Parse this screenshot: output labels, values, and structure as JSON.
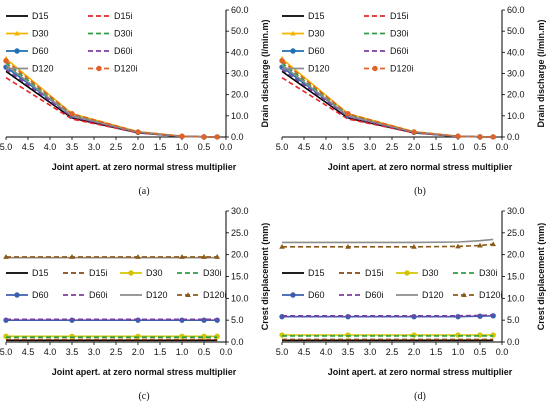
{
  "chart_data": [
    {
      "type": "line",
      "panel_label": "(a)",
      "xlabel": "Joint apert. at zero normal stress multiplier",
      "ylabel": "Drain discharge (l/min.m)",
      "x_reversed": true,
      "xlim": [
        5.0,
        0.0
      ],
      "ylim": [
        0.0,
        60.0
      ],
      "xticks": [
        "5.0",
        "4.5",
        "4.0",
        "3.5",
        "3.0",
        "2.5",
        "2.0",
        "1.5",
        "1.0",
        "0.5",
        "0.0"
      ],
      "yticks": [
        "0.0",
        "10.0",
        "20.0",
        "30.0",
        "40.0",
        "50.0",
        "60.0"
      ],
      "y_axis_side": "right",
      "legend_position": "top-left",
      "legend_columns": 2,
      "x": [
        5.0,
        3.5,
        2.0,
        1.0,
        0.5,
        0.2
      ],
      "series": [
        {
          "name": "D15",
          "color": "#000000",
          "dash": "solid",
          "marker": "none",
          "values": [
            31,
            9,
            2,
            0.3,
            0.1,
            0.05
          ]
        },
        {
          "name": "D15i",
          "color": "#e8262a",
          "dash": "dashed",
          "marker": "none",
          "values": [
            28,
            8.5,
            2,
            0.3,
            0.1,
            0.05
          ]
        },
        {
          "name": "D30",
          "color": "#f5b400",
          "dash": "solid",
          "marker": "triangle",
          "values": [
            37,
            11,
            2.5,
            0.4,
            0.1,
            0.05
          ]
        },
        {
          "name": "D30i",
          "color": "#2e9e44",
          "dash": "dashed",
          "marker": "none",
          "values": [
            35,
            10.5,
            2.4,
            0.3,
            0.1,
            0.05
          ]
        },
        {
          "name": "D60",
          "color": "#1f6fb5",
          "dash": "solid",
          "marker": "circle",
          "values": [
            33,
            10,
            2.2,
            0.3,
            0.1,
            0.05
          ]
        },
        {
          "name": "D60i",
          "color": "#7b3fa0",
          "dash": "dashed",
          "marker": "none",
          "values": [
            32,
            9.5,
            2.2,
            0.3,
            0.1,
            0.05
          ]
        },
        {
          "name": "D120",
          "color": "#8c8c8c",
          "dash": "solid",
          "marker": "none",
          "values": [
            34,
            10,
            2.3,
            0.3,
            0.1,
            0.05
          ]
        },
        {
          "name": "D120i",
          "color": "#e0612a",
          "dash": "dashed",
          "marker": "circle",
          "values": [
            36,
            11,
            2.4,
            0.4,
            0.1,
            0.05
          ]
        }
      ]
    },
    {
      "type": "line",
      "panel_label": "(b)",
      "xlabel": "Joint apert. at zero normal stress multiplier",
      "ylabel": "Drain discharge (l/min.m)",
      "x_reversed": true,
      "xlim": [
        5.0,
        0.0
      ],
      "ylim": [
        0.0,
        60.0
      ],
      "xticks": [
        "5.0",
        "4.5",
        "4.0",
        "3.5",
        "3.0",
        "2.5",
        "2.0",
        "1.5",
        "1.0",
        "0.5",
        "0.0"
      ],
      "yticks": [
        "0.0",
        "10.0",
        "20.0",
        "30.0",
        "40.0",
        "50.0",
        "60.0"
      ],
      "y_axis_side": "right",
      "legend_position": "top-left",
      "legend_columns": 2,
      "x": [
        5.0,
        3.5,
        2.0,
        1.0,
        0.5,
        0.2
      ],
      "series": [
        {
          "name": "D15",
          "color": "#000000",
          "dash": "solid",
          "marker": "none",
          "values": [
            31,
            9,
            2,
            0.3,
            0.1,
            0.05
          ]
        },
        {
          "name": "D15i",
          "color": "#e8262a",
          "dash": "dashed",
          "marker": "none",
          "values": [
            28,
            8.5,
            2,
            0.3,
            0.1,
            0.05
          ]
        },
        {
          "name": "D30",
          "color": "#f5b400",
          "dash": "solid",
          "marker": "triangle",
          "values": [
            37,
            11,
            2.5,
            0.4,
            0.1,
            0.05
          ]
        },
        {
          "name": "D30i",
          "color": "#2e9e44",
          "dash": "dashed",
          "marker": "none",
          "values": [
            35,
            10.5,
            2.4,
            0.3,
            0.1,
            0.05
          ]
        },
        {
          "name": "D60",
          "color": "#1f6fb5",
          "dash": "solid",
          "marker": "circle",
          "values": [
            33,
            10,
            2.2,
            0.3,
            0.1,
            0.05
          ]
        },
        {
          "name": "D60i",
          "color": "#7b3fa0",
          "dash": "dashed",
          "marker": "none",
          "values": [
            32,
            9.5,
            2.2,
            0.3,
            0.1,
            0.05
          ]
        },
        {
          "name": "D120",
          "color": "#8c8c8c",
          "dash": "solid",
          "marker": "none",
          "values": [
            34,
            10,
            2.3,
            0.3,
            0.1,
            0.05
          ]
        },
        {
          "name": "D120i",
          "color": "#e0612a",
          "dash": "dashed",
          "marker": "circle",
          "values": [
            36,
            11,
            2.4,
            0.4,
            0.1,
            0.05
          ]
        }
      ]
    },
    {
      "type": "line",
      "panel_label": "(c)",
      "xlabel": "Joint apert. at zero normal stress multiplier",
      "ylabel": "Crest displacement (mm)",
      "x_reversed": true,
      "xlim": [
        5.0,
        0.0
      ],
      "ylim": [
        0.0,
        30.0
      ],
      "xticks": [
        "5.0",
        "4.5",
        "4.0",
        "3.5",
        "3.0",
        "2.5",
        "2.0",
        "1.5",
        "1.0",
        "0.5",
        "0.0"
      ],
      "yticks": [
        "0.0",
        "5.0",
        "10.0",
        "15.0",
        "20.0",
        "25.0",
        "30.0"
      ],
      "y_axis_side": "right",
      "legend_position": "middle",
      "legend_columns": 4,
      "x": [
        5.0,
        3.5,
        2.0,
        1.0,
        0.5,
        0.2
      ],
      "series": [
        {
          "name": "D15",
          "color": "#000000",
          "dash": "solid",
          "marker": "none",
          "values": [
            0.4,
            0.4,
            0.4,
            0.4,
            0.4,
            0.4
          ]
        },
        {
          "name": "D15i",
          "color": "#8b4513",
          "dash": "dashed",
          "marker": "none",
          "values": [
            0.6,
            0.6,
            0.6,
            0.6,
            0.6,
            0.6
          ]
        },
        {
          "name": "D30",
          "color": "#d4c400",
          "dash": "solid",
          "marker": "circle",
          "values": [
            1.3,
            1.3,
            1.3,
            1.3,
            1.3,
            1.3
          ]
        },
        {
          "name": "D30i",
          "color": "#2e9e44",
          "dash": "dashed",
          "marker": "none",
          "values": [
            1.1,
            1.1,
            1.1,
            1.1,
            1.1,
            1.1
          ]
        },
        {
          "name": "D60",
          "color": "#3b5fae",
          "dash": "solid",
          "marker": "circle",
          "values": [
            5.0,
            5.0,
            5.0,
            5.0,
            5.0,
            5.0
          ]
        },
        {
          "name": "D60i",
          "color": "#7b3fa0",
          "dash": "dashed",
          "marker": "none",
          "values": [
            5.2,
            5.2,
            5.2,
            5.2,
            5.2,
            5.2
          ]
        },
        {
          "name": "D120",
          "color": "#8c8c8c",
          "dash": "solid",
          "marker": "none",
          "values": [
            19.3,
            19.3,
            19.3,
            19.3,
            19.3,
            19.3
          ]
        },
        {
          "name": "D120i",
          "color": "#8b5a1a",
          "dash": "dashed",
          "marker": "triangle",
          "values": [
            19.5,
            19.5,
            19.5,
            19.5,
            19.5,
            19.5
          ]
        }
      ]
    },
    {
      "type": "line",
      "panel_label": "(d)",
      "xlabel": "Joint apert. at zero normal stress multiplier",
      "ylabel": "Crest displacement (mm)",
      "x_reversed": true,
      "xlim": [
        5.0,
        0.0
      ],
      "ylim": [
        0.0,
        30.0
      ],
      "xticks": [
        "5.0",
        "4.5",
        "4.0",
        "3.5",
        "3.0",
        "2.5",
        "2.0",
        "1.5",
        "1.0",
        "0.5",
        "0.0"
      ],
      "yticks": [
        "0.0",
        "5.0",
        "10.0",
        "15.0",
        "20.0",
        "25.0",
        "30.0"
      ],
      "y_axis_side": "right",
      "legend_position": "middle",
      "legend_columns": 4,
      "x": [
        5.0,
        3.5,
        2.0,
        1.0,
        0.5,
        0.2
      ],
      "series": [
        {
          "name": "D15",
          "color": "#000000",
          "dash": "solid",
          "marker": "none",
          "values": [
            0.4,
            0.4,
            0.4,
            0.4,
            0.4,
            0.4
          ]
        },
        {
          "name": "D15i",
          "color": "#8b4513",
          "dash": "dashed",
          "marker": "none",
          "values": [
            0.6,
            0.6,
            0.6,
            0.6,
            0.6,
            0.6
          ]
        },
        {
          "name": "D30",
          "color": "#d4c400",
          "dash": "solid",
          "marker": "circle",
          "values": [
            1.6,
            1.6,
            1.6,
            1.6,
            1.6,
            1.6
          ]
        },
        {
          "name": "D30i",
          "color": "#2e9e44",
          "dash": "dashed",
          "marker": "none",
          "values": [
            1.4,
            1.4,
            1.4,
            1.4,
            1.4,
            1.4
          ]
        },
        {
          "name": "D60",
          "color": "#3b5fae",
          "dash": "solid",
          "marker": "circle",
          "values": [
            5.8,
            5.8,
            5.8,
            5.8,
            5.9,
            6.0
          ]
        },
        {
          "name": "D60i",
          "color": "#7b3fa0",
          "dash": "dashed",
          "marker": "none",
          "values": [
            6.0,
            6.0,
            6.0,
            6.0,
            6.1,
            6.2
          ]
        },
        {
          "name": "D120",
          "color": "#8c8c8c",
          "dash": "solid",
          "marker": "none",
          "values": [
            22.8,
            22.8,
            22.8,
            22.9,
            23.2,
            23.5
          ]
        },
        {
          "name": "D120i",
          "color": "#8b5a1a",
          "dash": "dashed",
          "marker": "triangle",
          "values": [
            21.8,
            21.8,
            21.8,
            21.9,
            22.1,
            22.4
          ]
        }
      ]
    }
  ]
}
